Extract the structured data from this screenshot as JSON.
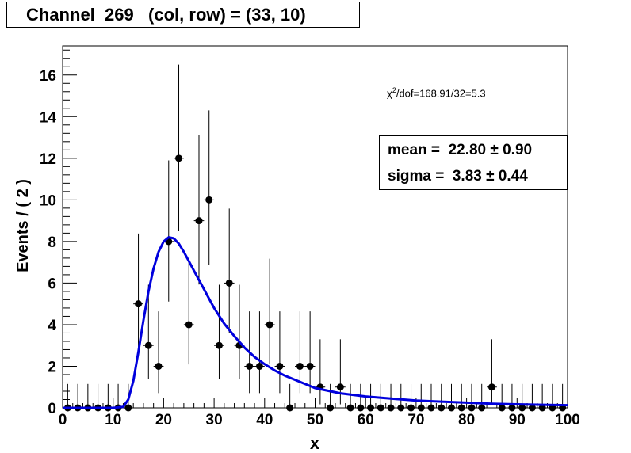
{
  "title": "Channel  269   (col, row) = (33, 10)",
  "chi2": {
    "symbol": "χ",
    "exp": "2",
    "rest": "/dof=168.91/32=5.3"
  },
  "stats": {
    "mean_label": "mean =  22.80 ± 0.90",
    "sigma_label": "sigma =  3.83 ± 0.44"
  },
  "chart_data": {
    "type": "scatter",
    "xlabel": "x",
    "ylabel": "Events / ( 2 )",
    "xlim": [
      0,
      100
    ],
    "ylim": [
      0,
      17.4
    ],
    "xticks": [
      0,
      10,
      20,
      30,
      40,
      50,
      60,
      70,
      80,
      90,
      100
    ],
    "yticks": [
      0,
      2,
      4,
      6,
      8,
      10,
      12,
      14,
      16
    ],
    "bin_width": 2,
    "points": [
      {
        "x": 1,
        "y": 0,
        "lo": 0,
        "hi": 1.15
      },
      {
        "x": 3,
        "y": 0,
        "lo": 0,
        "hi": 1.15
      },
      {
        "x": 5,
        "y": 0,
        "lo": 0,
        "hi": 1.15
      },
      {
        "x": 7,
        "y": 0,
        "lo": 0,
        "hi": 1.15
      },
      {
        "x": 9,
        "y": 0,
        "lo": 0,
        "hi": 1.15
      },
      {
        "x": 11,
        "y": 0,
        "lo": 0,
        "hi": 1.15
      },
      {
        "x": 13,
        "y": 0,
        "lo": 0,
        "hi": 1.15
      },
      {
        "x": 15,
        "y": 5,
        "lo": 2.84,
        "hi": 8.38
      },
      {
        "x": 17,
        "y": 3,
        "lo": 1.37,
        "hi": 5.92
      },
      {
        "x": 19,
        "y": 2,
        "lo": 0.71,
        "hi": 4.64
      },
      {
        "x": 21,
        "y": 8,
        "lo": 5.11,
        "hi": 11.9
      },
      {
        "x": 23,
        "y": 12,
        "lo": 8.49,
        "hi": 16.5
      },
      {
        "x": 25,
        "y": 4,
        "lo": 2.09,
        "hi": 7.17
      },
      {
        "x": 27,
        "y": 9,
        "lo": 5.93,
        "hi": 13.1
      },
      {
        "x": 29,
        "y": 10,
        "lo": 6.86,
        "hi": 14.3
      },
      {
        "x": 31,
        "y": 3,
        "lo": 1.37,
        "hi": 5.92
      },
      {
        "x": 33,
        "y": 6,
        "lo": 3.59,
        "hi": 9.58
      },
      {
        "x": 35,
        "y": 3,
        "lo": 1.37,
        "hi": 5.92
      },
      {
        "x": 37,
        "y": 2,
        "lo": 0.71,
        "hi": 4.64
      },
      {
        "x": 39,
        "y": 2,
        "lo": 0.71,
        "hi": 4.64
      },
      {
        "x": 41,
        "y": 4,
        "lo": 2.09,
        "hi": 7.17
      },
      {
        "x": 43,
        "y": 2,
        "lo": 0.71,
        "hi": 4.64
      },
      {
        "x": 45,
        "y": 0,
        "lo": 0,
        "hi": 1.15
      },
      {
        "x": 47,
        "y": 2,
        "lo": 0.71,
        "hi": 4.64
      },
      {
        "x": 49,
        "y": 2,
        "lo": 0.71,
        "hi": 4.64
      },
      {
        "x": 51,
        "y": 1,
        "lo": 0.17,
        "hi": 3.3
      },
      {
        "x": 53,
        "y": 0,
        "lo": 0,
        "hi": 1.15
      },
      {
        "x": 55,
        "y": 1,
        "lo": 0.17,
        "hi": 3.3
      },
      {
        "x": 57,
        "y": 0,
        "lo": 0,
        "hi": 1.15
      },
      {
        "x": 59,
        "y": 0,
        "lo": 0,
        "hi": 1.15
      },
      {
        "x": 61,
        "y": 0,
        "lo": 0,
        "hi": 1.15
      },
      {
        "x": 63,
        "y": 0,
        "lo": 0,
        "hi": 1.15
      },
      {
        "x": 65,
        "y": 0,
        "lo": 0,
        "hi": 1.15
      },
      {
        "x": 67,
        "y": 0,
        "lo": 0,
        "hi": 1.15
      },
      {
        "x": 69,
        "y": 0,
        "lo": 0,
        "hi": 1.15
      },
      {
        "x": 71,
        "y": 0,
        "lo": 0,
        "hi": 1.15
      },
      {
        "x": 73,
        "y": 0,
        "lo": 0,
        "hi": 1.15
      },
      {
        "x": 75,
        "y": 0,
        "lo": 0,
        "hi": 1.15
      },
      {
        "x": 77,
        "y": 0,
        "lo": 0,
        "hi": 1.15
      },
      {
        "x": 79,
        "y": 0,
        "lo": 0,
        "hi": 1.15
      },
      {
        "x": 81,
        "y": 0,
        "lo": 0,
        "hi": 1.15
      },
      {
        "x": 83,
        "y": 0,
        "lo": 0,
        "hi": 1.15
      },
      {
        "x": 85,
        "y": 1,
        "lo": 0.17,
        "hi": 3.3
      },
      {
        "x": 87,
        "y": 0,
        "lo": 0,
        "hi": 1.15
      },
      {
        "x": 89,
        "y": 0,
        "lo": 0,
        "hi": 1.15
      },
      {
        "x": 91,
        "y": 0,
        "lo": 0,
        "hi": 1.15
      },
      {
        "x": 93,
        "y": 0,
        "lo": 0,
        "hi": 1.15
      },
      {
        "x": 95,
        "y": 0,
        "lo": 0,
        "hi": 1.15
      },
      {
        "x": 97,
        "y": 0,
        "lo": 0,
        "hi": 1.15
      },
      {
        "x": 99,
        "y": 0,
        "lo": 0,
        "hi": 1.15
      }
    ],
    "fit_curve": {
      "color": "#0000dd",
      "x": [
        0,
        10,
        12,
        13,
        14,
        15,
        16,
        17,
        18,
        19,
        20,
        21,
        22,
        23,
        24,
        25,
        26,
        27,
        28,
        29,
        30,
        32,
        34,
        36,
        38,
        40,
        42,
        44,
        46,
        48,
        50,
        55,
        60,
        65,
        70,
        75,
        80,
        85,
        90,
        95,
        100
      ],
      "y": [
        0,
        0,
        0.05,
        0.4,
        1.3,
        2.7,
        4.2,
        5.6,
        6.7,
        7.5,
        8.0,
        8.2,
        8.15,
        7.9,
        7.5,
        7.05,
        6.6,
        6.15,
        5.7,
        5.25,
        4.8,
        4.05,
        3.45,
        2.9,
        2.45,
        2.1,
        1.8,
        1.55,
        1.35,
        1.15,
        0.95,
        0.7,
        0.55,
        0.45,
        0.35,
        0.3,
        0.25,
        0.2,
        0.17,
        0.15,
        0.13
      ]
    }
  }
}
